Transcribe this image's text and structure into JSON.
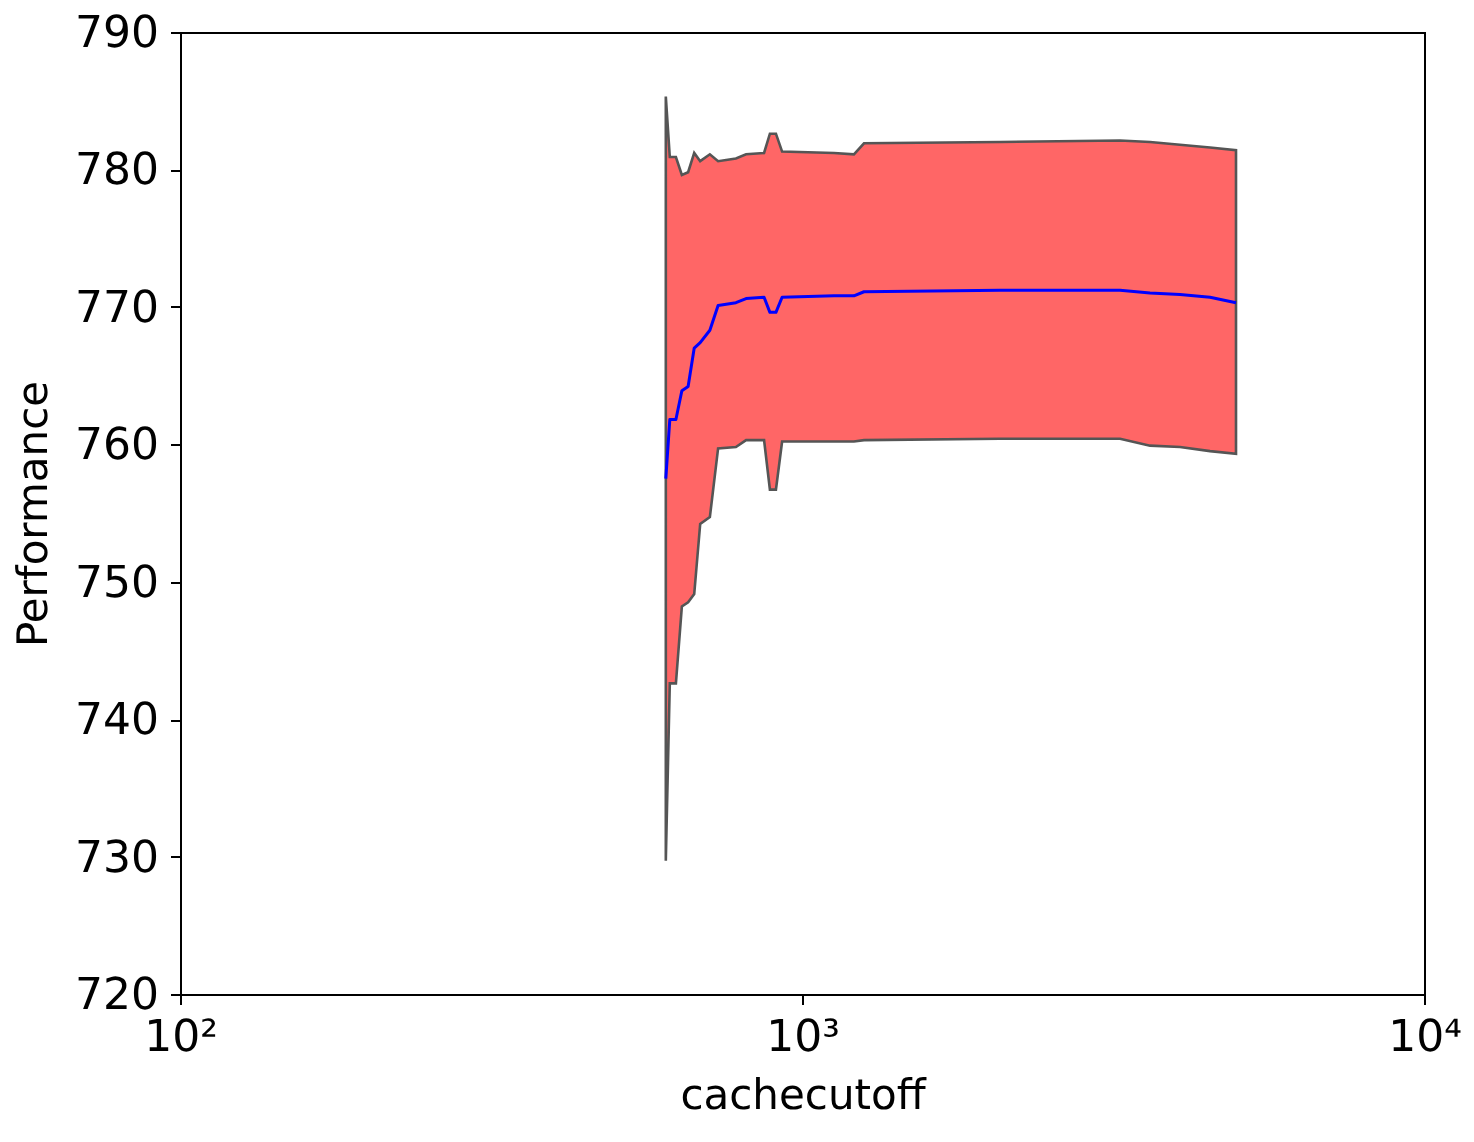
{
  "chart_data": {
    "type": "line",
    "xlabel": "cachecutoff",
    "ylabel": "Performance",
    "log": "x",
    "grid": false,
    "marker": "none",
    "line_style": "solid",
    "xlim": [
      100,
      10000
    ],
    "ylim": [
      720,
      790
    ],
    "xticks": [
      {
        "value": 100,
        "label": "10²"
      },
      {
        "value": 1000,
        "label": "10³"
      },
      {
        "value": 10000,
        "label": "10⁴"
      }
    ],
    "yticks": [
      720,
      730,
      740,
      750,
      760,
      770,
      780,
      790
    ],
    "x": [
      604,
      613,
      627,
      641,
      656,
      671,
      686,
      711,
      733,
      783,
      813,
      869,
      888,
      908,
      929,
      1126,
      1212,
      1258,
      2081,
      3246,
      3627,
      4052,
      4529,
      4986
    ],
    "series": [
      {
        "color": "#0000ff",
        "values": [
          757.5,
          761.8,
          761.8,
          763.9,
          764.2,
          767.0,
          767.4,
          768.3,
          770.1,
          770.3,
          770.6,
          770.7,
          769.6,
          769.6,
          770.7,
          770.8,
          770.8,
          771.1,
          771.2,
          771.2,
          771.0,
          770.9,
          770.7,
          770.3
        ],
        "upper": [
          785.3,
          780.9,
          780.9,
          779.6,
          779.8,
          781.2,
          780.6,
          781.1,
          780.6,
          780.8,
          781.1,
          781.2,
          782.6,
          782.6,
          781.3,
          781.2,
          781.1,
          781.9,
          782.0,
          782.1,
          782.0,
          781.8,
          781.6,
          781.4
        ],
        "lower": [
          729.7,
          742.6,
          742.6,
          748.2,
          748.5,
          749.1,
          754.2,
          754.7,
          759.7,
          759.8,
          760.3,
          760.3,
          756.7,
          756.7,
          760.2,
          760.2,
          760.2,
          760.3,
          760.4,
          760.4,
          759.9,
          759.8,
          759.5,
          759.3
        ]
      }
    ]
  }
}
